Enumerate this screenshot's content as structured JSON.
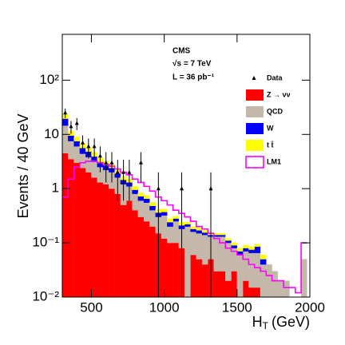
{
  "chart_data": {
    "type": "stacked-histogram",
    "annotations": [
      "CMS",
      "√s = 7 TeV",
      "L = 36 pb⁻¹"
    ],
    "y_label": "Events / 40 GeV",
    "x_label_main": "H",
    "x_label_sub": "T",
    "x_label_unit": "(GeV)",
    "log_y": true,
    "xlim": [
      300,
      2000
    ],
    "ylim": [
      0.01,
      700
    ],
    "xticks": [
      500,
      1000,
      1500,
      2000
    ],
    "yticks": [
      {
        "value": 0.01,
        "label": "10⁻²"
      },
      {
        "value": 0.1,
        "label": "10⁻¹"
      },
      1,
      10,
      {
        "value": 100,
        "label": "10²"
      }
    ],
    "bins": [
      300,
      340,
      380,
      420,
      460,
      500,
      540,
      580,
      620,
      660,
      700,
      740,
      780,
      820,
      860,
      900,
      940,
      980,
      1020,
      1060,
      1100,
      1140,
      1180,
      1220,
      1260,
      1300,
      1340,
      1380,
      1420,
      1460,
      1500,
      1540,
      1580,
      1620,
      1660,
      1700,
      1740,
      1780,
      1820,
      1860,
      1900,
      1940,
      1980
    ],
    "series": [
      {
        "name": "Z → νν",
        "color": "#ff0000",
        "values": [
          4.5,
          3.5,
          3,
          2.4,
          2,
          1.6,
          1.3,
          1.2,
          1,
          0.8,
          0.5,
          0.6,
          0.4,
          0.3,
          0.25,
          0.2,
          0.15,
          0.12,
          0.1,
          0.1,
          0.08,
          0,
          0.06,
          0.05,
          0.04,
          0.05,
          0.03,
          0.03,
          0.02,
          0.03,
          0,
          0.02,
          0.015,
          0.015,
          0,
          0,
          0,
          0,
          0,
          0,
          0,
          0
        ]
      },
      {
        "name": "QCD",
        "color": "#c4b8aa",
        "values": [
          10,
          4,
          3,
          2,
          1.8,
          1.5,
          1.2,
          1,
          1,
          0.8,
          0.7,
          0.5,
          0.4,
          0.3,
          0.3,
          0.2,
          0.15,
          0.2,
          0.1,
          0.15,
          0.1,
          0.2,
          0.1,
          0.1,
          0.1,
          0.08,
          0.1,
          0.1,
          0.08,
          0.05,
          0.06,
          0.05,
          0.05,
          0.05,
          0.04,
          0.04,
          0.03,
          0.02,
          0.02,
          0.01,
          0.01,
          0.05
        ]
      },
      {
        "name": "W",
        "color": "#0000ff",
        "values": [
          5,
          2,
          1.5,
          1.2,
          1,
          0.8,
          0.6,
          0.5,
          0.4,
          0.3,
          0.25,
          0.2,
          0.15,
          0.12,
          0.1,
          0.08,
          0.06,
          0.05,
          0.04,
          0.03,
          0.03,
          0.02,
          0.02,
          0.02,
          0.015,
          0.01,
          0.01,
          0.01,
          0.01,
          0.01,
          0.01,
          0.01,
          0.01,
          0.02,
          0.01,
          0,
          0,
          0,
          0,
          0,
          0,
          0
        ]
      },
      {
        "name": "t t̄",
        "color": "#ffff00",
        "values": [
          4,
          2,
          1.5,
          1.2,
          1,
          0.8,
          0.6,
          0.5,
          0.4,
          0.3,
          0.25,
          0.2,
          0.15,
          0.12,
          0.1,
          0.08,
          0.06,
          0.05,
          0.04,
          0.03,
          0.03,
          0.02,
          0.02,
          0.02,
          0.015,
          0.01,
          0.01,
          0.01,
          0.01,
          0.01,
          0.01,
          0.01,
          0.01,
          0.01,
          0.01,
          0,
          0,
          0,
          0,
          0,
          0,
          0
        ]
      }
    ],
    "signal": {
      "name": "LM1",
      "color": "#ff00ff",
      "values": [
        0.7,
        1.5,
        2.5,
        3,
        3.2,
        3.2,
        3,
        2.8,
        2.6,
        2.3,
        2,
        1.8,
        1.5,
        1.3,
        1.1,
        0.9,
        0.7,
        0.6,
        0.5,
        0.4,
        0.35,
        0.3,
        0.25,
        0.2,
        0.18,
        0.15,
        0.12,
        0.1,
        0.08,
        0.07,
        0.06,
        0.05,
        0.04,
        0.035,
        0.03,
        0.025,
        0.02,
        0.02,
        0.015,
        0.015,
        0.012,
        0.1
      ]
    },
    "data": {
      "name": "Data",
      "color": "#000000",
      "values": [
        25,
        14,
        16,
        7,
        6,
        6,
        4,
        3,
        3,
        2,
        2,
        2,
        null,
        3,
        null,
        null,
        1,
        null,
        null,
        null,
        1,
        null,
        null,
        null,
        null,
        1,
        null,
        null,
        null,
        null,
        null,
        null,
        null,
        null,
        null,
        null,
        null,
        null,
        null,
        null,
        null,
        null
      ],
      "errors": [
        5,
        3.7,
        4,
        2.6,
        2.4,
        2.4,
        2,
        1.7,
        1.7,
        1.4,
        1.4,
        1.4,
        null,
        1.7,
        null,
        null,
        1,
        null,
        null,
        null,
        1,
        null,
        null,
        null,
        null,
        1,
        null,
        null,
        null,
        null,
        null,
        null,
        null,
        null,
        null,
        null,
        null,
        null,
        null,
        null,
        null,
        null
      ]
    }
  }
}
